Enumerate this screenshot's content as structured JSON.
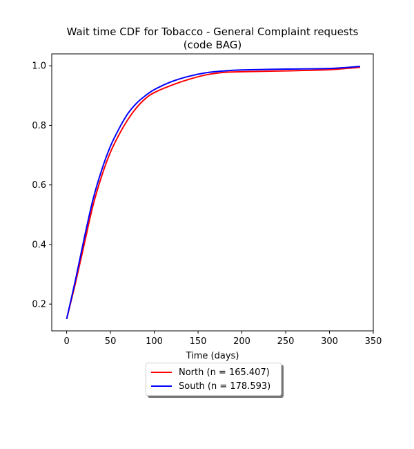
{
  "chart_data": {
    "type": "line",
    "title_line1": "Wait time CDF for Tobacco - General Complaint  requests",
    "title_line2": "(code BAG)",
    "xlabel": "Time (days)",
    "ylabel": "",
    "xlim": [
      -17,
      350
    ],
    "ylim": [
      0.11,
      1.04
    ],
    "x_ticks": [
      0,
      50,
      100,
      150,
      200,
      250,
      300,
      350
    ],
    "y_ticks": [
      0.2,
      0.4,
      0.6,
      0.8,
      1.0
    ],
    "x_tick_labels": [
      "0",
      "50",
      "100",
      "150",
      "200",
      "250",
      "300",
      "350"
    ],
    "y_tick_labels": [
      "0.2",
      "0.4",
      "0.6",
      "0.8",
      "1.0"
    ],
    "grid": false,
    "legend_position": "below",
    "series": [
      {
        "name": "North (n = 165.407)",
        "color": "#ff0000",
        "x": [
          0,
          10,
          20,
          30,
          40,
          50,
          60,
          70,
          80,
          90,
          100,
          120,
          140,
          160,
          180,
          200,
          250,
          300,
          335
        ],
        "y": [
          0.15,
          0.27,
          0.4,
          0.53,
          0.63,
          0.71,
          0.77,
          0.82,
          0.86,
          0.89,
          0.91,
          0.935,
          0.955,
          0.97,
          0.978,
          0.98,
          0.983,
          0.987,
          0.995
        ]
      },
      {
        "name": "South (n = 178.593)",
        "color": "#0000ff",
        "x": [
          0,
          10,
          20,
          30,
          40,
          50,
          60,
          70,
          80,
          90,
          100,
          120,
          140,
          160,
          180,
          200,
          250,
          300,
          335
        ],
        "y": [
          0.15,
          0.28,
          0.42,
          0.55,
          0.65,
          0.73,
          0.79,
          0.84,
          0.875,
          0.9,
          0.92,
          0.947,
          0.965,
          0.977,
          0.983,
          0.986,
          0.989,
          0.991,
          0.998
        ]
      }
    ]
  }
}
